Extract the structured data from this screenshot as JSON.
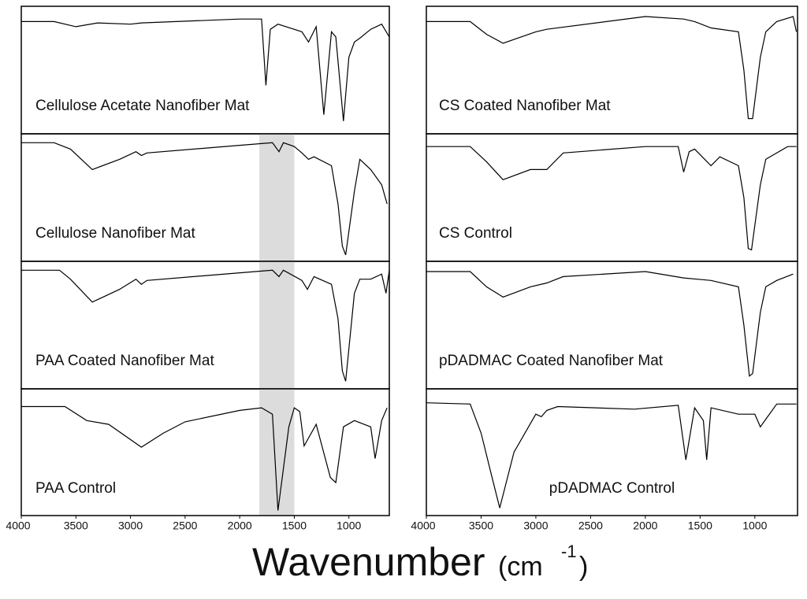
{
  "chart_data": [
    {
      "type": "line",
      "label": "Cellulose Acetate Nanofiber Mat",
      "color": "#000000",
      "xlim": [
        4000,
        630
      ],
      "ylim": [
        0,
        100
      ],
      "x": [
        4000,
        3700,
        3500,
        3300,
        3000,
        2900,
        2000,
        1800,
        1760,
        1720,
        1650,
        1430,
        1370,
        1300,
        1230,
        1160,
        1120,
        1050,
        1000,
        950,
        900,
        800,
        700,
        630
      ],
      "values": [
        88,
        88,
        84,
        87,
        86,
        87,
        90,
        90,
        38,
        82,
        86,
        80,
        72,
        84,
        15,
        80,
        76,
        10,
        60,
        72,
        75,
        82,
        86,
        76
      ]
    },
    {
      "type": "line",
      "label": "Cellulose Nanofiber Mat",
      "color": "#000000",
      "xlim": [
        4000,
        630
      ],
      "ylim": [
        0,
        100
      ],
      "highlight": [
        1820,
        1500
      ],
      "x": [
        4000,
        3700,
        3550,
        3350,
        3100,
        2950,
        2900,
        2850,
        2000,
        1700,
        1640,
        1600,
        1500,
        1430,
        1370,
        1320,
        1160,
        1100,
        1060,
        1030,
        950,
        900,
        800,
        700,
        650
      ],
      "values": [
        93,
        93,
        88,
        72,
        80,
        86,
        83,
        85,
        91,
        93,
        86,
        93,
        90,
        85,
        80,
        82,
        75,
        45,
        12,
        5,
        55,
        80,
        72,
        60,
        45
      ]
    },
    {
      "type": "line",
      "label": "PAA Coated Nanofiber Mat",
      "color": "#000000",
      "xlim": [
        4000,
        630
      ],
      "ylim": [
        0,
        100
      ],
      "highlight": [
        1820,
        1500
      ],
      "x": [
        4000,
        3650,
        3550,
        3350,
        3100,
        2950,
        2900,
        2850,
        2000,
        1700,
        1640,
        1600,
        1430,
        1380,
        1320,
        1160,
        1100,
        1060,
        1030,
        950,
        900,
        800,
        700,
        660,
        630
      ],
      "values": [
        93,
        93,
        86,
        68,
        78,
        86,
        82,
        85,
        91,
        93,
        88,
        93,
        85,
        78,
        88,
        82,
        55,
        14,
        6,
        75,
        86,
        86,
        90,
        75,
        93
      ]
    },
    {
      "type": "line",
      "label": "PAA Control",
      "color": "#000000",
      "xlim": [
        4000,
        630
      ],
      "ylim": [
        0,
        100
      ],
      "highlight": [
        1820,
        1500
      ],
      "xticks": [
        4000,
        3500,
        3000,
        2500,
        2000,
        1500,
        1000
      ],
      "x": [
        4000,
        3600,
        3400,
        3200,
        2900,
        2700,
        2500,
        2000,
        1800,
        1700,
        1650,
        1550,
        1500,
        1450,
        1410,
        1300,
        1170,
        1120,
        1050,
        950,
        800,
        760,
        700,
        650
      ],
      "values": [
        86,
        86,
        75,
        72,
        54,
        65,
        74,
        83,
        85,
        80,
        4,
        70,
        85,
        82,
        55,
        72,
        30,
        26,
        70,
        75,
        70,
        45,
        75,
        85
      ]
    },
    {
      "type": "line",
      "label": "CS Coated Nanofiber Mat",
      "color": "#000000",
      "xlim": [
        4000,
        610
      ],
      "ylim": [
        0,
        100
      ],
      "x": [
        4000,
        3600,
        3450,
        3300,
        3000,
        2900,
        2000,
        1650,
        1550,
        1400,
        1150,
        1100,
        1060,
        1020,
        950,
        900,
        800,
        650,
        620
      ],
      "values": [
        88,
        88,
        78,
        71,
        80,
        82,
        92,
        90,
        88,
        83,
        80,
        50,
        12,
        12,
        60,
        80,
        88,
        92,
        80
      ]
    },
    {
      "type": "line",
      "label": "CS Control",
      "color": "#000000",
      "xlim": [
        4000,
        610
      ],
      "ylim": [
        0,
        100
      ],
      "x": [
        4000,
        3600,
        3450,
        3300,
        3050,
        2900,
        2750,
        2000,
        1700,
        1650,
        1600,
        1550,
        1400,
        1320,
        1150,
        1100,
        1060,
        1030,
        950,
        900,
        700,
        620
      ],
      "values": [
        90,
        90,
        78,
        64,
        72,
        72,
        85,
        90,
        90,
        70,
        86,
        88,
        75,
        82,
        75,
        50,
        10,
        9,
        60,
        80,
        90,
        90
      ]
    },
    {
      "type": "line",
      "label": "pDADMAC Coated Nanofiber Mat",
      "color": "#000000",
      "xlim": [
        4000,
        610
      ],
      "ylim": [
        0,
        100
      ],
      "x": [
        4000,
        3600,
        3450,
        3300,
        3050,
        2900,
        2750,
        2000,
        1650,
        1400,
        1150,
        1100,
        1050,
        1020,
        950,
        900,
        800,
        650
      ],
      "values": [
        92,
        92,
        80,
        72,
        80,
        83,
        88,
        92,
        87,
        85,
        80,
        50,
        10,
        12,
        60,
        80,
        85,
        90
      ]
    },
    {
      "type": "line",
      "label": "pDADMAC Control",
      "color": "#000000",
      "xlim": [
        4000,
        610
      ],
      "ylim": [
        0,
        100
      ],
      "xticks": [
        4000,
        3500,
        3000,
        2500,
        2000,
        1500,
        1000
      ],
      "x": [
        4000,
        3600,
        3500,
        3400,
        3330,
        3200,
        3000,
        2950,
        2900,
        2800,
        2100,
        1700,
        1630,
        1550,
        1470,
        1440,
        1400,
        1150,
        1000,
        950,
        900,
        800,
        620
      ],
      "values": [
        89,
        88,
        65,
        30,
        6,
        50,
        80,
        78,
        83,
        86,
        84,
        87,
        44,
        85,
        75,
        44,
        85,
        80,
        80,
        70,
        76,
        88,
        88
      ]
    }
  ],
  "figure": {
    "x_label": "Wavenumber",
    "x_unit_open": "(cm",
    "x_unit_exp": "-1",
    "x_unit_close": ")"
  }
}
